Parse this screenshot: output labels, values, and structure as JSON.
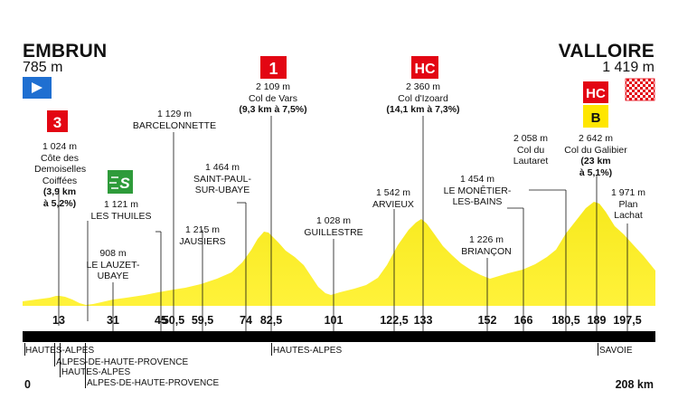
{
  "start": {
    "name": "EMBRUN",
    "altitude": "785 m",
    "km": "0"
  },
  "finish": {
    "name": "VALLOIRE",
    "altitude": "1 419 m",
    "km": "208 km"
  },
  "markers": [
    {
      "km": 13,
      "label": "13"
    },
    {
      "km": 31,
      "label": "31"
    },
    {
      "km": 45,
      "label": "45"
    },
    {
      "km": 50.5,
      "label": "50,5"
    },
    {
      "km": 59.5,
      "label": "59,5"
    },
    {
      "km": 74,
      "label": "74"
    },
    {
      "km": 82.5,
      "label": "82,5"
    },
    {
      "km": 101,
      "label": "101"
    },
    {
      "km": 122.5,
      "label": "122,5"
    },
    {
      "km": 133,
      "label": "133"
    },
    {
      "km": 152,
      "label": "152"
    },
    {
      "km": 166,
      "label": "166"
    },
    {
      "km": 180.5,
      "label": "180,5"
    },
    {
      "km": 189,
      "label": "189"
    },
    {
      "km": 197.5,
      "label": "197,5"
    }
  ],
  "waypoints": [
    {
      "alt": "1 024 m",
      "lines": [
        "Côte des",
        "Demoiselles",
        "Coiffées"
      ],
      "detail": [
        "(3,9 km",
        "à 5,2%)"
      ]
    },
    {
      "alt": "908 m",
      "lines": [
        "LE LAUZET-",
        "UBAYE"
      ]
    },
    {
      "alt": "1 121 m",
      "lines": [
        "LES THUILES"
      ]
    },
    {
      "alt": "1 129 m",
      "lines": [
        "BARCELONNETTE"
      ]
    },
    {
      "alt": "1 215 m",
      "lines": [
        "JAUSIERS"
      ]
    },
    {
      "alt": "1 464 m",
      "lines": [
        "SAINT-PAUL-",
        "SUR-UBAYE"
      ]
    },
    {
      "alt": "2 109 m",
      "lines": [
        "Col de Vars"
      ],
      "detail": [
        "(9,3 km à 7,5%)"
      ]
    },
    {
      "alt": "1 028 m",
      "lines": [
        "GUILLESTRE"
      ]
    },
    {
      "alt": "1 542 m",
      "lines": [
        "ARVIEUX"
      ]
    },
    {
      "alt": "2 360 m",
      "lines": [
        "Col d'Izoard"
      ],
      "detail": [
        "(14,1 km à 7,3%)"
      ]
    },
    {
      "alt": "1 226 m",
      "lines": [
        "BRIANÇON"
      ]
    },
    {
      "alt": "1 454 m",
      "lines": [
        "LE MONÊTIER-",
        "LES-BAINS"
      ]
    },
    {
      "alt": "2 058 m",
      "lines": [
        "Col du",
        "Lautaret"
      ]
    },
    {
      "alt": "2 642 m",
      "lines": [
        "Col du Galibier"
      ],
      "detail": [
        "(23 km",
        "à 5,1%)"
      ]
    },
    {
      "alt": "1 971 m",
      "lines": [
        "Plan",
        "Lachat"
      ]
    }
  ],
  "badges": {
    "col_3": "3",
    "sprint": "S",
    "col_1": "1",
    "col_hc_izoard": "HC",
    "col_hc_galibier": "HC",
    "bonus": "B"
  },
  "regions": [
    "HAUTES-ALPES",
    "ALPES-DE-HAUTE-PROVENCE",
    "HAUTES-ALPES",
    "ALPES-DE-HAUTE-PROVENCE",
    "HAUTES-ALPES",
    "SAVOIE"
  ],
  "colors": {
    "profile_fill": "#f7e91d",
    "profile_dark": "#c9b400",
    "band": "#000000",
    "category_red": "#e30613",
    "sprint_green": "#2e9b3a",
    "start_blue": "#1f6fd1",
    "bonus_yellow": "#ffe600"
  }
}
